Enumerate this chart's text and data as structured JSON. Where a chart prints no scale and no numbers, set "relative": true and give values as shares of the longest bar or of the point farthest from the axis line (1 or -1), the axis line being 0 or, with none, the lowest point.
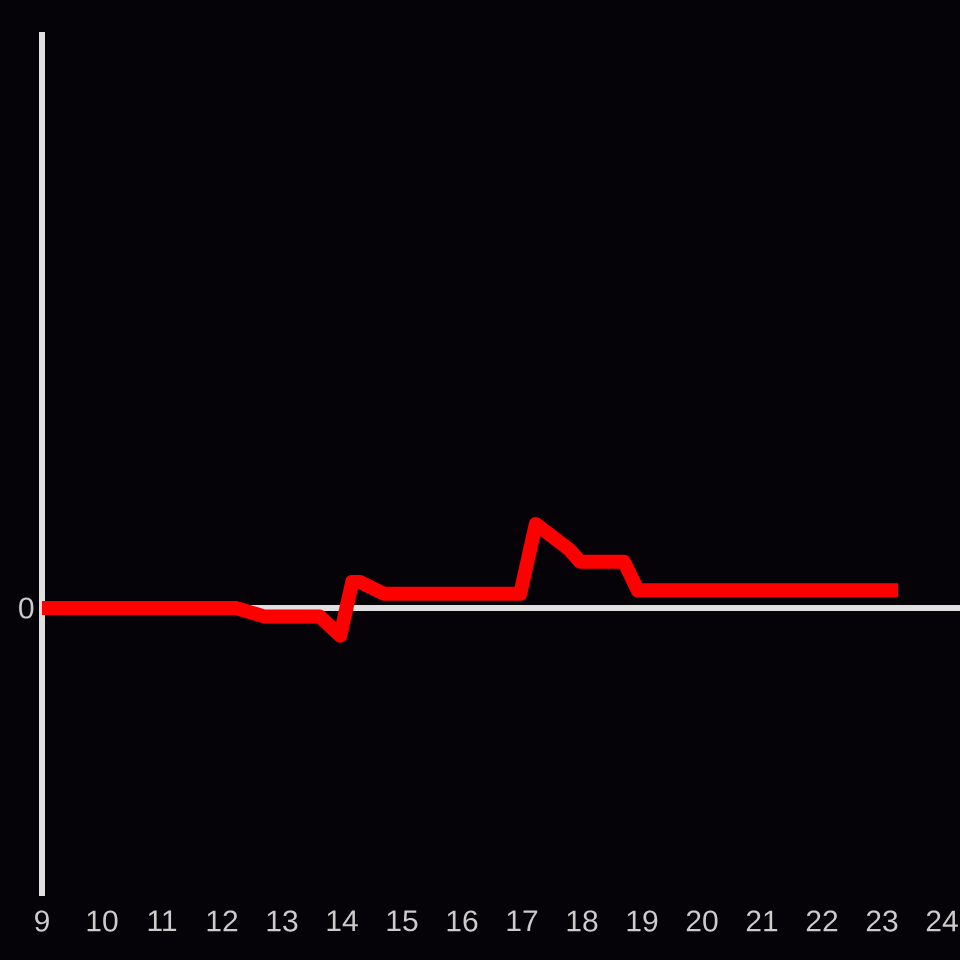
{
  "chart_data": {
    "type": "line",
    "relative": true,
    "x": [
      9,
      12.23,
      12.7,
      13.63,
      13.97,
      14.17,
      14.3,
      14.7,
      16.97,
      17.23,
      17.8,
      17.97,
      18.7,
      18.93,
      23.27
    ],
    "values": [
      0,
      0,
      -0.1,
      -0.1,
      -0.33,
      0.31,
      0.31,
      0.17,
      0.17,
      1,
      0.69,
      0.55,
      0.55,
      0.21,
      0.21
    ],
    "color": "#ff0000",
    "line_style": "solid",
    "xlim": [
      9,
      24.3
    ],
    "xticks": [
      9,
      10,
      11,
      12,
      13,
      14,
      15,
      16,
      17,
      18,
      19,
      20,
      21,
      22,
      23,
      24
    ],
    "ref_lines": [
      {
        "axis": "y",
        "value": 0,
        "label": "0",
        "color": "#e0e0e0"
      }
    ]
  }
}
